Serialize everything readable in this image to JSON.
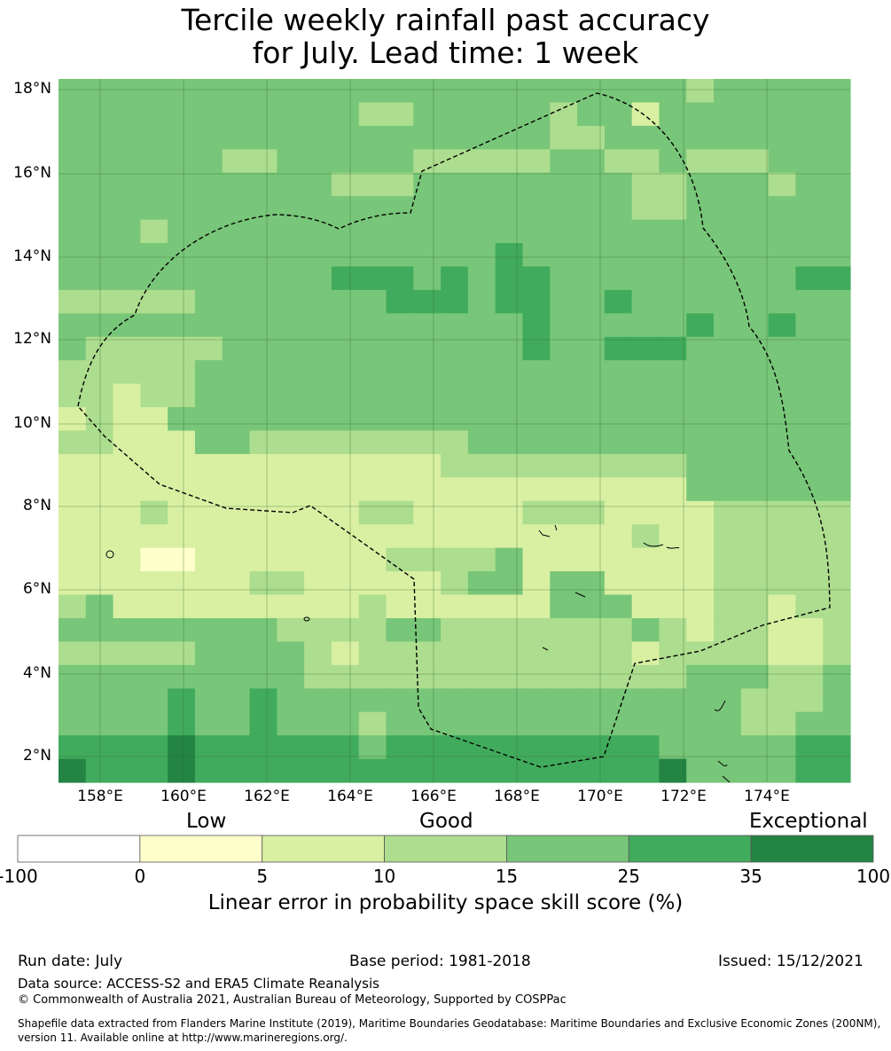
{
  "title_line1": "Tercile weekly rainfall past accuracy",
  "title_line2": "for July. Lead time: 1 week",
  "lat_labels": [
    "18°N",
    "16°N",
    "14°N",
    "12°N",
    "10°N",
    "8°N",
    "6°N",
    "4°N",
    "2°N"
  ],
  "lon_labels": [
    "158°E",
    "160°E",
    "162°E",
    "164°E",
    "166°E",
    "168°E",
    "170°E",
    "172°E",
    "174°E"
  ],
  "colorbar": {
    "categories": [
      "Low",
      "Good",
      "Exceptional"
    ],
    "ticks": [
      "-100",
      "0",
      "5",
      "10",
      "15",
      "25",
      "35",
      "100"
    ],
    "colors": [
      "#ffffff",
      "#ffffcc",
      "#d9f0a3",
      "#addd8e",
      "#78c679",
      "#41ab5d",
      "#238443"
    ],
    "label": "Linear error in probability space skill score (%)"
  },
  "grid_legend": "Each character is one map cell by skill class: 1 = 0 to 5, 2 = 5 to 10, 3 = 10 to 15, 4 = 15 to 25, 5 = 25 to 35, 6 = 35 to 100",
  "grid_rows": [
    "44444444444444444444444344444",
    "44444444444444444434424444444",
    "44444444444444444433444444444",
    "44444444444444444444444444444",
    "44444444444444444444444444444",
    "44444444444444444444444444444",
    "44444444444444444444444444444",
    "44444444444444444444444444444",
    "44444444444444444444444444444",
    "33333444444444444444444444444",
    "44444444444444444444444444444",
    "43333444444444444444444444444",
    "33333444444444444444444444444",
    "33333444444444444444444444444",
    "33444444444444444444444444444",
    "33222333333333344444444444444",
    "22222222222222333333333444444",
    "22222222222222222222222444444",
    "22222222222222222222222233333",
    "22222222222222222222222233333",
    "22221222222222222222222233333",
    "22222222222222222222222233333",
    "42222222222222222222222333333",
    "44444444444444444444443333333",
    "44444444444444444444444444444",
    "44444444444444444444444444444",
    "44444444444444444444444444444",
    "44444444444444444444444444444",
    "55555555555555555555554444455",
    "55555555555555555555554444455"
  ],
  "grid_patches": [
    {
      "r": 1,
      "c": 11,
      "v": 3
    },
    {
      "r": 1,
      "c": 12,
      "v": 3
    },
    {
      "r": 3,
      "c": 6,
      "v": 3
    },
    {
      "r": 3,
      "c": 7,
      "v": 3
    },
    {
      "r": 3,
      "c": 13,
      "v": 3
    },
    {
      "r": 3,
      "c": 14,
      "v": 3
    },
    {
      "r": 3,
      "c": 15,
      "v": 3
    },
    {
      "r": 3,
      "c": 16,
      "v": 3
    },
    {
      "r": 3,
      "c": 17,
      "v": 3
    },
    {
      "r": 3,
      "c": 20,
      "v": 3
    },
    {
      "r": 3,
      "c": 21,
      "v": 3
    },
    {
      "r": 3,
      "c": 23,
      "v": 3
    },
    {
      "r": 3,
      "c": 24,
      "v": 3
    },
    {
      "r": 3,
      "c": 25,
      "v": 3
    },
    {
      "r": 4,
      "c": 10,
      "v": 3
    },
    {
      "r": 4,
      "c": 11,
      "v": 3
    },
    {
      "r": 4,
      "c": 12,
      "v": 3
    },
    {
      "r": 4,
      "c": 21,
      "v": 3
    },
    {
      "r": 4,
      "c": 22,
      "v": 3
    },
    {
      "r": 4,
      "c": 26,
      "v": 3
    },
    {
      "r": 5,
      "c": 21,
      "v": 3
    },
    {
      "r": 5,
      "c": 22,
      "v": 3
    },
    {
      "r": 6,
      "c": 3,
      "v": 3
    },
    {
      "r": 7,
      "c": 16,
      "v": 5
    },
    {
      "r": 8,
      "c": 16,
      "v": 5
    },
    {
      "r": 8,
      "c": 12,
      "v": 5
    },
    {
      "r": 8,
      "c": 10,
      "v": 5
    },
    {
      "r": 8,
      "c": 11,
      "v": 5
    },
    {
      "r": 8,
      "c": 14,
      "v": 5
    },
    {
      "r": 8,
      "c": 17,
      "v": 5
    },
    {
      "r": 8,
      "c": 27,
      "v": 5
    },
    {
      "r": 8,
      "c": 28,
      "v": 5
    },
    {
      "r": 9,
      "c": 12,
      "v": 5
    },
    {
      "r": 9,
      "c": 13,
      "v": 5
    },
    {
      "r": 9,
      "c": 14,
      "v": 5
    },
    {
      "r": 9,
      "c": 16,
      "v": 5
    },
    {
      "r": 9,
      "c": 17,
      "v": 5
    },
    {
      "r": 9,
      "c": 20,
      "v": 5
    },
    {
      "r": 10,
      "c": 17,
      "v": 5
    },
    {
      "r": 10,
      "c": 23,
      "v": 5
    },
    {
      "r": 10,
      "c": 26,
      "v": 5
    },
    {
      "r": 11,
      "c": 17,
      "v": 5
    },
    {
      "r": 11,
      "c": 20,
      "v": 5
    },
    {
      "r": 11,
      "c": 21,
      "v": 5
    },
    {
      "r": 11,
      "c": 22,
      "v": 5
    },
    {
      "r": 11,
      "c": 3,
      "v": 3
    },
    {
      "r": 11,
      "c": 4,
      "v": 3
    },
    {
      "r": 11,
      "c": 5,
      "v": 3
    },
    {
      "r": 13,
      "c": 2,
      "v": 2
    },
    {
      "r": 14,
      "c": 0,
      "v": 2
    },
    {
      "r": 14,
      "c": 2,
      "v": 2
    },
    {
      "r": 14,
      "c": 3,
      "v": 2
    },
    {
      "r": 15,
      "c": 5,
      "v": 4
    },
    {
      "r": 15,
      "c": 6,
      "v": 4
    },
    {
      "r": 15,
      "c": 11,
      "v": 3
    },
    {
      "r": 15,
      "c": 12,
      "v": 3
    },
    {
      "r": 15,
      "c": 13,
      "v": 3
    },
    {
      "r": 16,
      "c": 11,
      "v": 2
    },
    {
      "r": 18,
      "c": 3,
      "v": 3
    },
    {
      "r": 18,
      "c": 11,
      "v": 3
    },
    {
      "r": 18,
      "c": 12,
      "v": 3
    },
    {
      "r": 18,
      "c": 17,
      "v": 3
    },
    {
      "r": 18,
      "c": 18,
      "v": 3
    },
    {
      "r": 18,
      "c": 19,
      "v": 3
    },
    {
      "r": 19,
      "c": 19,
      "v": 2
    },
    {
      "r": 19,
      "c": 20,
      "v": 2
    },
    {
      "r": 19,
      "c": 21,
      "v": 3
    },
    {
      "r": 20,
      "c": 3,
      "v": 1
    },
    {
      "r": 20,
      "c": 12,
      "v": 3
    },
    {
      "r": 20,
      "c": 13,
      "v": 3
    },
    {
      "r": 20,
      "c": 14,
      "v": 3
    },
    {
      "r": 20,
      "c": 15,
      "v": 3
    },
    {
      "r": 20,
      "c": 16,
      "v": 4
    },
    {
      "r": 21,
      "c": 7,
      "v": 3
    },
    {
      "r": 21,
      "c": 8,
      "v": 3
    },
    {
      "r": 21,
      "c": 14,
      "v": 3
    },
    {
      "r": 21,
      "c": 15,
      "v": 4
    },
    {
      "r": 21,
      "c": 16,
      "v": 4
    },
    {
      "r": 21,
      "c": 18,
      "v": 4
    },
    {
      "r": 21,
      "c": 19,
      "v": 4
    },
    {
      "r": 22,
      "c": 0,
      "v": 3
    },
    {
      "r": 22,
      "c": 1,
      "v": 4
    },
    {
      "r": 22,
      "c": 6,
      "v": 2
    },
    {
      "r": 22,
      "c": 7,
      "v": 2
    },
    {
      "r": 22,
      "c": 11,
      "v": 3
    },
    {
      "r": 22,
      "c": 18,
      "v": 4
    },
    {
      "r": 22,
      "c": 19,
      "v": 4
    },
    {
      "r": 22,
      "c": 20,
      "v": 4
    },
    {
      "r": 22,
      "c": 23,
      "v": 2
    },
    {
      "r": 22,
      "c": 24,
      "v": 3
    },
    {
      "r": 22,
      "c": 26,
      "v": 2
    },
    {
      "r": 22,
      "c": 27,
      "v": 3
    },
    {
      "r": 23,
      "c": 0,
      "v": 4
    },
    {
      "r": 23,
      "c": 1,
      "v": 4
    },
    {
      "r": 23,
      "c": 8,
      "v": 3
    },
    {
      "r": 23,
      "c": 9,
      "v": 3
    },
    {
      "r": 23,
      "c": 10,
      "v": 3
    },
    {
      "r": 23,
      "c": 11,
      "v": 3
    },
    {
      "r": 23,
      "c": 14,
      "v": 3
    },
    {
      "r": 23,
      "c": 15,
      "v": 3
    },
    {
      "r": 23,
      "c": 16,
      "v": 3
    },
    {
      "r": 23,
      "c": 17,
      "v": 3
    },
    {
      "r": 23,
      "c": 18,
      "v": 3
    },
    {
      "r": 23,
      "c": 19,
      "v": 3
    },
    {
      "r": 23,
      "c": 20,
      "v": 3
    },
    {
      "r": 23,
      "c": 23,
      "v": 2
    },
    {
      "r": 23,
      "c": 26,
      "v": 2
    },
    {
      "r": 23,
      "c": 27,
      "v": 2
    },
    {
      "r": 24,
      "c": 0,
      "v": 3
    },
    {
      "r": 24,
      "c": 1,
      "v": 3
    },
    {
      "r": 24,
      "c": 2,
      "v": 3
    },
    {
      "r": 24,
      "c": 3,
      "v": 3
    },
    {
      "r": 24,
      "c": 4,
      "v": 3
    },
    {
      "r": 24,
      "c": 9,
      "v": 3
    },
    {
      "r": 24,
      "c": 10,
      "v": 2
    },
    {
      "r": 24,
      "c": 11,
      "v": 3
    },
    {
      "r": 24,
      "c": 12,
      "v": 3
    },
    {
      "r": 24,
      "c": 13,
      "v": 3
    },
    {
      "r": 24,
      "c": 14,
      "v": 3
    },
    {
      "r": 24,
      "c": 15,
      "v": 3
    },
    {
      "r": 24,
      "c": 16,
      "v": 3
    },
    {
      "r": 24,
      "c": 17,
      "v": 3
    },
    {
      "r": 24,
      "c": 18,
      "v": 3
    },
    {
      "r": 24,
      "c": 19,
      "v": 3
    },
    {
      "r": 24,
      "c": 20,
      "v": 3
    },
    {
      "r": 24,
      "c": 21,
      "v": 2
    },
    {
      "r": 24,
      "c": 22,
      "v": 3
    },
    {
      "r": 24,
      "c": 23,
      "v": 3
    },
    {
      "r": 24,
      "c": 24,
      "v": 3
    },
    {
      "r": 24,
      "c": 25,
      "v": 3
    },
    {
      "r": 24,
      "c": 26,
      "v": 2
    },
    {
      "r": 24,
      "c": 27,
      "v": 2
    },
    {
      "r": 24,
      "c": 28,
      "v": 3
    },
    {
      "r": 25,
      "c": 9,
      "v": 3
    },
    {
      "r": 25,
      "c": 10,
      "v": 3
    },
    {
      "r": 25,
      "c": 11,
      "v": 3
    },
    {
      "r": 25,
      "c": 12,
      "v": 3
    },
    {
      "r": 25,
      "c": 13,
      "v": 3
    },
    {
      "r": 25,
      "c": 14,
      "v": 3
    },
    {
      "r": 25,
      "c": 15,
      "v": 3
    },
    {
      "r": 25,
      "c": 16,
      "v": 3
    },
    {
      "r": 25,
      "c": 17,
      "v": 3
    },
    {
      "r": 25,
      "c": 18,
      "v": 3
    },
    {
      "r": 25,
      "c": 19,
      "v": 3
    },
    {
      "r": 25,
      "c": 20,
      "v": 3
    },
    {
      "r": 25,
      "c": 21,
      "v": 3
    },
    {
      "r": 25,
      "c": 22,
      "v": 3
    },
    {
      "r": 25,
      "c": 26,
      "v": 3
    },
    {
      "r": 25,
      "c": 27,
      "v": 3
    },
    {
      "r": 26,
      "c": 4,
      "v": 5
    },
    {
      "r": 26,
      "c": 7,
      "v": 5
    },
    {
      "r": 26,
      "c": 25,
      "v": 3
    },
    {
      "r": 26,
      "c": 26,
      "v": 3
    },
    {
      "r": 26,
      "c": 27,
      "v": 3
    },
    {
      "r": 27,
      "c": 4,
      "v": 5
    },
    {
      "r": 27,
      "c": 7,
      "v": 5
    },
    {
      "r": 27,
      "c": 8,
      "v": 4
    },
    {
      "r": 27,
      "c": 11,
      "v": 3
    },
    {
      "r": 27,
      "c": 25,
      "v": 3
    },
    {
      "r": 27,
      "c": 26,
      "v": 3
    },
    {
      "r": 28,
      "c": 11,
      "v": 4
    },
    {
      "r": 28,
      "c": 4,
      "v": 6
    },
    {
      "r": 29,
      "c": 4,
      "v": 6
    },
    {
      "r": 29,
      "c": 0,
      "v": 6
    },
    {
      "r": 29,
      "c": 22,
      "v": 6
    }
  ],
  "footer": {
    "run_date": "Run date: July",
    "base_period": "Base period: 1981-2018",
    "issued": "Issued: 15/12/2021",
    "data_source": "Data source: ACCESS-S2 and ERA5 Climate Reanalysis",
    "copyright": "© Commonwealth of Australia 2021, Australian Bureau of Meteorology, Supported by COSPPac",
    "shapefile_line1": "Shapefile data extracted from Flanders Marine Institute (2019), Maritime Boundaries Geodatabase: Maritime Boundaries and Exclusive Economic Zones (200NM),",
    "shapefile_line2": "version 11. Available online at http://www.marineregions.org/."
  }
}
